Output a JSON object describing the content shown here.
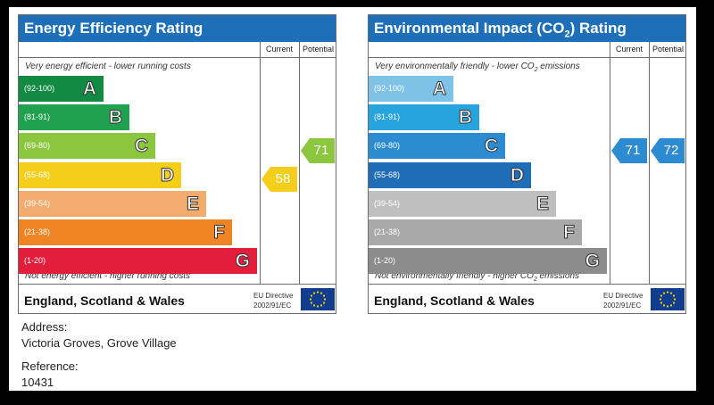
{
  "ee": {
    "title": "Energy Efficiency Rating",
    "col_current": "Current",
    "col_potential": "Potential",
    "top_note": "Very energy efficient - lower running costs",
    "bottom_note": "Not energy efficient - higher running costs",
    "bands": [
      {
        "range": "(92-100)",
        "letter": "A",
        "color": "#138a43"
      },
      {
        "range": "(81-91)",
        "letter": "B",
        "color": "#1fa150"
      },
      {
        "range": "(69-80)",
        "letter": "C",
        "color": "#8cc63e"
      },
      {
        "range": "(55-68)",
        "letter": "D",
        "color": "#f5cd1b"
      },
      {
        "range": "(39-54)",
        "letter": "E",
        "color": "#f2ac6e"
      },
      {
        "range": "(21-38)",
        "letter": "F",
        "color": "#ee8423"
      },
      {
        "range": "(1-20)",
        "letter": "G",
        "color": "#e31d3c"
      }
    ],
    "current_value": "58",
    "current_color": "#f5cd1b",
    "potential_value": "71",
    "potential_color": "#8cc63e",
    "region": "England, Scotland & Wales",
    "eu_line1": "EU Directive",
    "eu_line2": "2002/91/EC"
  },
  "ei": {
    "title_main": "Environmental Impact (CO",
    "title_sub": "2",
    "title_end": ") Rating",
    "col_current": "Current",
    "col_potential": "Potential",
    "top_note": "Very environmentally friendly - lower CO",
    "top_note_sub": "2",
    "top_note_end": " emissions",
    "bottom_note": "Not environmentally friendly - higher CO",
    "bottom_note_sub": "2",
    "bottom_note_end": " emissions",
    "bands": [
      {
        "range": "(92-100)",
        "letter": "A",
        "color": "#7fc2e8"
      },
      {
        "range": "(81-91)",
        "letter": "B",
        "color": "#27a4de"
      },
      {
        "range": "(69-80)",
        "letter": "C",
        "color": "#2d8cd1"
      },
      {
        "range": "(55-68)",
        "letter": "D",
        "color": "#1f6db6"
      },
      {
        "range": "(39-54)",
        "letter": "E",
        "color": "#bfbfbf"
      },
      {
        "range": "(21-38)",
        "letter": "F",
        "color": "#a9a9a9"
      },
      {
        "range": "(1-20)",
        "letter": "G",
        "color": "#8c8c8c"
      }
    ],
    "current_value": "71",
    "current_color": "#2d8cd1",
    "potential_value": "72",
    "potential_color": "#2d8cd1",
    "region": "England, Scotland & Wales",
    "eu_line1": "EU Directive",
    "eu_line2": "2002/91/EC"
  },
  "info": {
    "address_label": "Address:",
    "address_value": "Victoria Groves, Grove Village",
    "reference_label": "Reference:",
    "reference_value": "10431"
  }
}
